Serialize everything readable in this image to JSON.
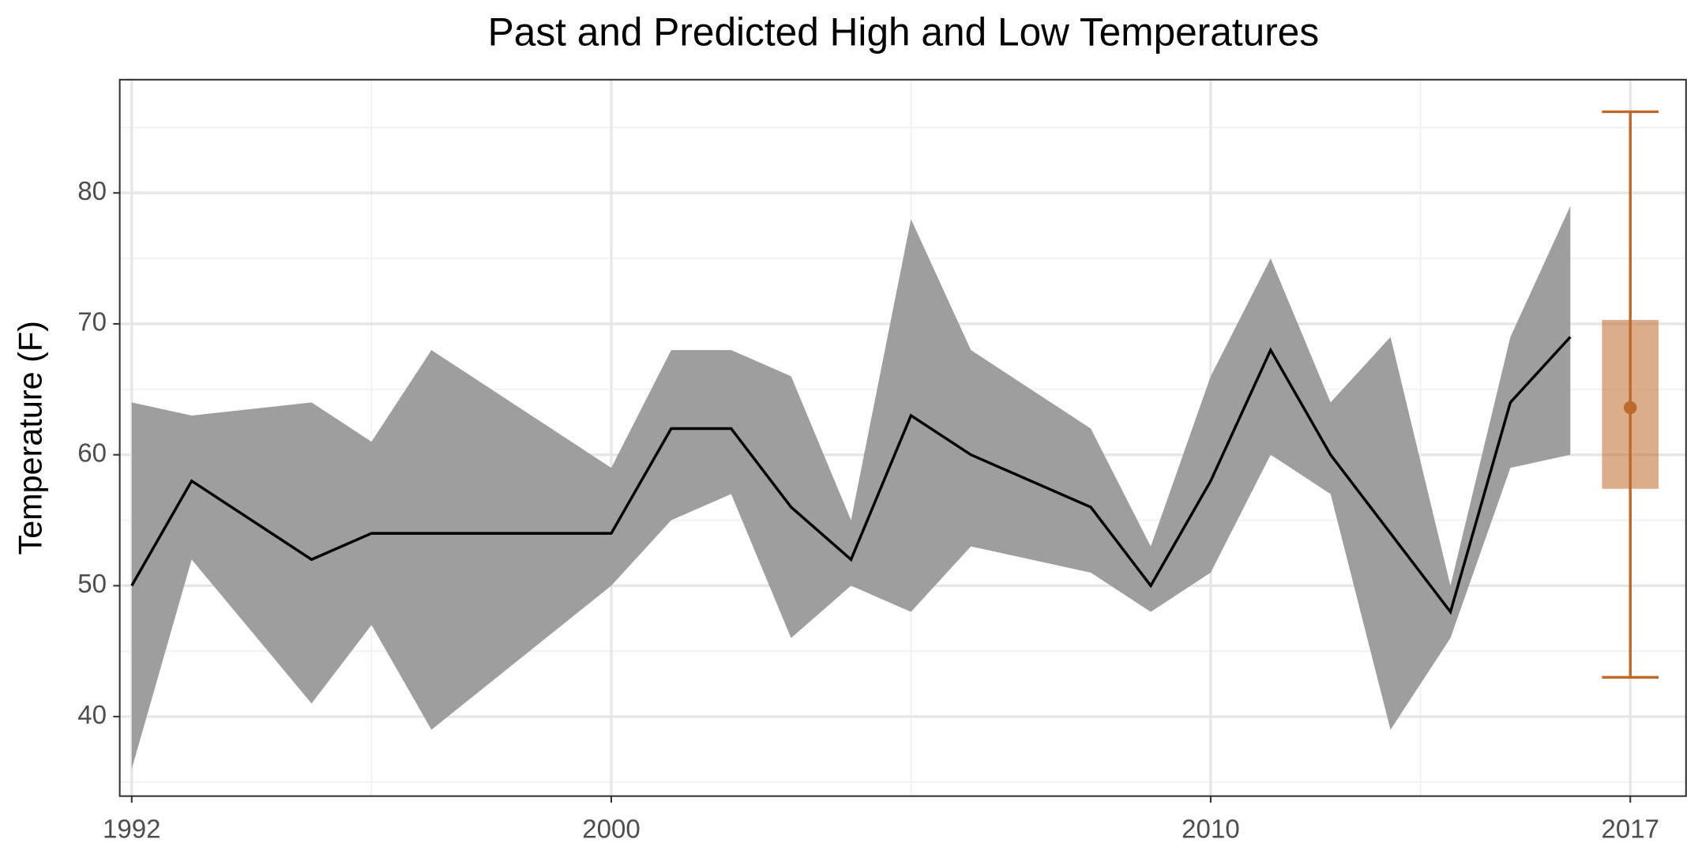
{
  "chart_data": {
    "type": "line",
    "title": "Past and Predicted High and Low Temperatures",
    "y_label": "Temperature (F)",
    "x": [
      1992,
      1993,
      1995,
      1996,
      1997,
      2000,
      2001,
      2002,
      2003,
      2004,
      2005,
      2006,
      2008,
      2009,
      2010,
      2011,
      2012,
      2013,
      2014,
      2015,
      2016
    ],
    "values": [
      50,
      58,
      52,
      54,
      54,
      54,
      62,
      62,
      56,
      52,
      63,
      60,
      56,
      50,
      58,
      68,
      60,
      54,
      48,
      64,
      69
    ],
    "high": [
      64,
      63,
      64,
      61,
      68,
      59,
      68,
      68,
      66,
      55,
      78,
      68,
      62,
      53,
      66,
      75,
      64,
      69,
      50,
      69,
      79
    ],
    "low": [
      36,
      52,
      41,
      47,
      39,
      50,
      55,
      57,
      46,
      50,
      48,
      53,
      51,
      48,
      51,
      60,
      57,
      39,
      46,
      59,
      60
    ],
    "color": "#000000",
    "band_color": "#999999",
    "prediction": {
      "x": 2017,
      "value": 63.6,
      "box_low": 57.4,
      "box_high": 70.3,
      "min": 43,
      "max": 86.2,
      "color": "#bd6a2c"
    },
    "xlim": [
      1991.8,
      2017.93
    ],
    "xticks": [
      1992,
      2000,
      2010,
      2017
    ],
    "ylim": [
      33.93,
      88.65
    ],
    "yticks": [
      40,
      50,
      60,
      70,
      80
    ],
    "grid": true
  }
}
